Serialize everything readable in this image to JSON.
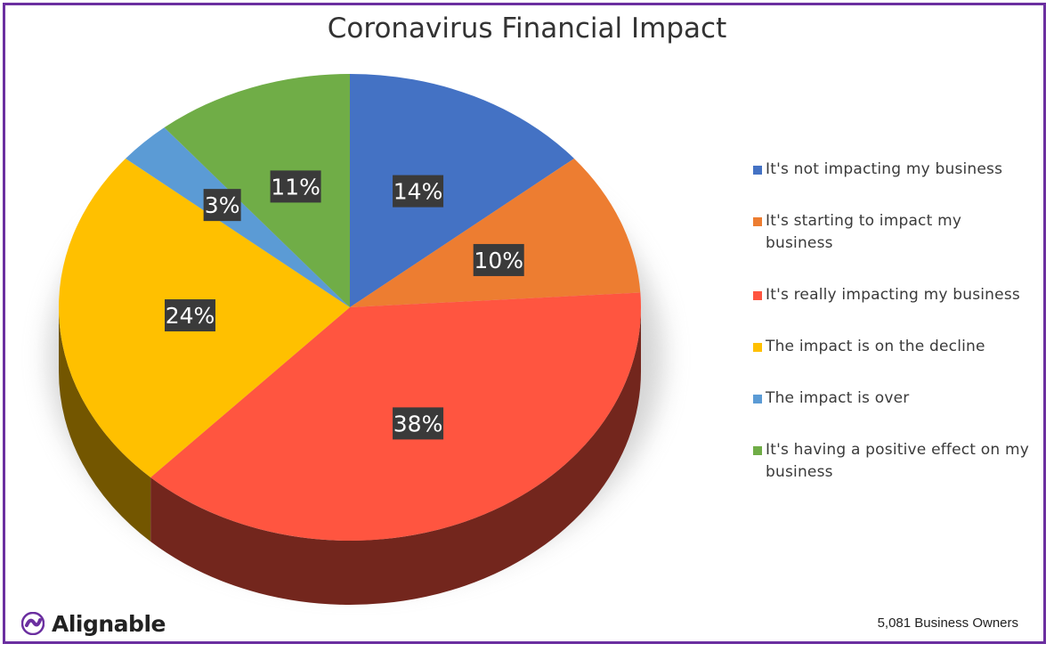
{
  "chart_data": {
    "type": "pie",
    "title": "Coronavirus Financial Impact",
    "slices": [
      {
        "label": "It's not impacting my business",
        "value": 14,
        "display": "14%",
        "color": "#4472c4"
      },
      {
        "label": "It's starting to impact my business",
        "value": 10,
        "display": "10%",
        "color": "#ed7d31"
      },
      {
        "label": "It's really impacting my business",
        "value": 38,
        "display": "38%",
        "color": "#ff5540"
      },
      {
        "label": "The impact is on the decline",
        "value": 24,
        "display": "24%",
        "color": "#ffc000"
      },
      {
        "label": "The impact is over",
        "value": 3,
        "display": "3%",
        "color": "#5b9bd5"
      },
      {
        "label": "It's having a positive effect on my business",
        "value": 11,
        "display": "11%",
        "color": "#70ad47"
      }
    ],
    "legend_position": "right",
    "style": "3d-tilted"
  },
  "footer": {
    "brand": "Alignable",
    "sample": "5,081 Business Owners"
  },
  "colors": {
    "border": "#6b2fa0",
    "label_bg": "#3a3a3a",
    "logo": "#6b2fa0"
  }
}
